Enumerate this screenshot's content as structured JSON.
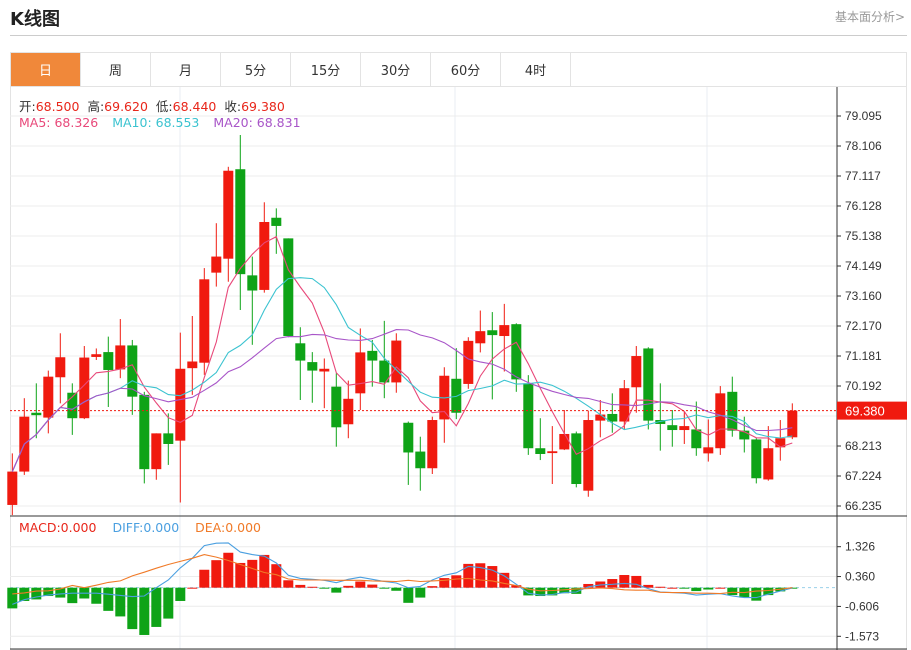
{
  "header": {
    "title": "K线图",
    "link": "基本面分析>"
  },
  "tabs": [
    {
      "label": "日",
      "active": true
    },
    {
      "label": "周"
    },
    {
      "label": "月"
    },
    {
      "label": "5分"
    },
    {
      "label": "15分"
    },
    {
      "label": "30分"
    },
    {
      "label": "60分"
    },
    {
      "label": "4时"
    }
  ],
  "legend": {
    "open_label": "开:",
    "open": "68.500",
    "high_label": "高:",
    "high": "69.620",
    "low_label": "低:",
    "low": "68.440",
    "close_label": "收:",
    "close": "69.380",
    "ma5": "MA5: 68.326",
    "ma10": "MA10: 68.553",
    "ma20": "MA20: 68.831"
  },
  "macd_legend": {
    "macd": "MACD:0.000",
    "diff": "DIFF:0.000",
    "dea": "DEA:0.000"
  },
  "colors": {
    "up": "#f01a0f",
    "down": "#0ea317",
    "accent": "#f0883a",
    "ma5": "#e8497a",
    "ma10": "#3bc3d0",
    "ma20": "#a855c8",
    "diff": "#4a9fe0",
    "dea": "#f07a28"
  },
  "chart_data": [
    {
      "type": "candlestick",
      "yticks": [
        "79.095",
        "78.106",
        "77.117",
        "76.128",
        "75.138",
        "74.149",
        "73.160",
        "72.170",
        "71.181",
        "70.192",
        "68.213",
        "67.224",
        "66.235"
      ],
      "ylim": [
        66.235,
        79.095
      ],
      "last_price": "69.380",
      "ma_periods": [
        5,
        10,
        20
      ],
      "ohlc": [
        [
          66.27,
          67.97,
          65.9,
          67.37
        ],
        [
          67.37,
          69.79,
          67.26,
          69.18
        ],
        [
          69.31,
          70.28,
          68.47,
          69.23
        ],
        [
          69.15,
          70.7,
          68.63,
          70.5
        ],
        [
          70.48,
          71.93,
          69.62,
          71.14
        ],
        [
          69.97,
          70.28,
          68.58,
          69.13
        ],
        [
          69.13,
          71.51,
          69.1,
          71.13
        ],
        [
          71.15,
          71.43,
          71.05,
          71.24
        ],
        [
          71.31,
          71.82,
          69.5,
          70.72
        ],
        [
          70.74,
          72.4,
          70.45,
          71.53
        ],
        [
          71.53,
          71.71,
          69.24,
          69.84
        ],
        [
          69.9,
          70.0,
          66.98,
          67.45
        ],
        [
          67.45,
          68.63,
          67.1,
          68.63
        ],
        [
          68.63,
          69.29,
          67.59,
          68.28
        ],
        [
          68.39,
          71.95,
          66.35,
          70.76
        ],
        [
          70.78,
          72.5,
          69.9,
          71.0
        ],
        [
          70.96,
          74.08,
          70.56,
          73.71
        ],
        [
          73.93,
          75.56,
          73.47,
          74.46
        ],
        [
          74.39,
          77.42,
          73.63,
          77.29
        ],
        [
          77.34,
          78.47,
          72.7,
          73.88
        ],
        [
          73.84,
          74.46,
          71.55,
          73.34
        ],
        [
          73.36,
          76.25,
          73.27,
          75.6
        ],
        [
          75.74,
          76.05,
          74.55,
          75.47
        ],
        [
          75.06,
          75.06,
          71.8,
          71.84
        ],
        [
          71.6,
          72.13,
          69.73,
          71.03
        ],
        [
          70.98,
          71.31,
          69.64,
          70.7
        ],
        [
          70.67,
          71.1,
          69.46,
          70.76
        ],
        [
          70.17,
          70.61,
          68.19,
          68.83
        ],
        [
          68.93,
          70.37,
          68.47,
          69.77
        ],
        [
          69.95,
          72.09,
          69.4,
          71.3
        ],
        [
          71.35,
          71.71,
          70.17,
          71.03
        ],
        [
          71.03,
          72.34,
          69.79,
          70.31
        ],
        [
          70.31,
          71.93,
          69.97,
          71.69
        ],
        [
          68.98,
          69.02,
          66.93,
          68.0
        ],
        [
          68.03,
          68.52,
          66.74,
          67.48
        ],
        [
          67.48,
          69.18,
          67.29,
          69.07
        ],
        [
          69.09,
          70.81,
          68.32,
          70.53
        ],
        [
          70.43,
          71.44,
          69.1,
          69.31
        ],
        [
          70.26,
          71.8,
          70.1,
          71.68
        ],
        [
          71.6,
          72.68,
          71.3,
          72.0
        ],
        [
          72.03,
          72.63,
          69.75,
          71.87
        ],
        [
          71.84,
          72.9,
          70.67,
          72.2
        ],
        [
          72.23,
          72.26,
          70.0,
          70.41
        ],
        [
          70.28,
          70.55,
          67.92,
          68.14
        ],
        [
          68.14,
          69.13,
          67.75,
          67.95
        ],
        [
          67.98,
          68.87,
          66.96,
          68.04
        ],
        [
          68.1,
          69.4,
          68.08,
          68.61
        ],
        [
          68.63,
          68.69,
          66.85,
          66.96
        ],
        [
          66.74,
          69.38,
          66.54,
          69.07
        ],
        [
          69.05,
          69.73,
          68.5,
          69.25
        ],
        [
          69.27,
          69.95,
          68.65,
          69.02
        ],
        [
          69.02,
          70.39,
          68.74,
          70.12
        ],
        [
          70.15,
          71.51,
          69.31,
          71.18
        ],
        [
          71.43,
          71.47,
          68.76,
          69.05
        ],
        [
          69.07,
          70.28,
          68.06,
          68.94
        ],
        [
          68.9,
          69.4,
          68.19,
          68.74
        ],
        [
          68.74,
          69.35,
          68.28,
          68.87
        ],
        [
          68.76,
          69.68,
          67.89,
          68.14
        ],
        [
          67.97,
          69.09,
          67.7,
          68.17
        ],
        [
          68.14,
          70.19,
          67.92,
          69.95
        ],
        [
          70.0,
          70.5,
          68.52,
          68.72
        ],
        [
          68.72,
          69.18,
          68.0,
          68.43
        ],
        [
          68.43,
          68.47,
          66.98,
          67.15
        ],
        [
          67.11,
          68.87,
          67.07,
          68.14
        ],
        [
          68.17,
          69.07,
          67.73,
          68.47
        ],
        [
          68.5,
          69.62,
          68.44,
          69.38
        ]
      ]
    },
    {
      "type": "bar+line",
      "yticks": [
        "1.326",
        "0.360",
        "-0.606",
        "-1.573"
      ],
      "ylim": [
        -1.573,
        1.326
      ],
      "macd": [
        -0.67,
        -0.43,
        -0.38,
        -0.27,
        -0.32,
        -0.5,
        -0.35,
        -0.52,
        -0.75,
        -0.93,
        -1.34,
        -1.53,
        -1.27,
        -1.0,
        -0.43,
        0,
        0.58,
        0.89,
        1.13,
        0.8,
        0.9,
        1.06,
        0.76,
        0.24,
        0.09,
        0.03,
        -0.02,
        -0.16,
        0.06,
        0.2,
        0.1,
        -0.01,
        -0.1,
        -0.49,
        -0.32,
        0.05,
        0.31,
        0.4,
        0.77,
        0.79,
        0.7,
        0.48,
        0.08,
        -0.25,
        -0.27,
        -0.25,
        -0.18,
        -0.2,
        0.12,
        0.2,
        0.28,
        0.41,
        0.38,
        0.09,
        0.03,
        0,
        -0.03,
        -0.11,
        -0.06,
        0,
        -0.24,
        -0.32,
        -0.42,
        -0.24,
        -0.12,
        -0.01
      ],
      "diff": [
        -0.54,
        -0.39,
        -0.3,
        -0.24,
        -0.2,
        -0.18,
        -0.18,
        -0.18,
        -0.21,
        -0.25,
        -0.29,
        -0.27,
        0,
        0.25,
        0.64,
        0.95,
        1.36,
        1.44,
        1.45,
        1.15,
        1.07,
        1.02,
        0.8,
        0.4,
        0.3,
        0.27,
        0.24,
        0.16,
        0.27,
        0.34,
        0.27,
        0.2,
        0.15,
        0,
        0.04,
        0.25,
        0.4,
        0.48,
        0.69,
        0.65,
        0.57,
        0.38,
        0.11,
        -0.18,
        -0.24,
        -0.22,
        -0.16,
        -0.14,
        0.03,
        0.09,
        0.11,
        0.14,
        0.11,
        -0.03,
        -0.14,
        -0.16,
        -0.18,
        -0.24,
        -0.21,
        -0.19,
        -0.27,
        -0.32,
        -0.32,
        -0.21,
        -0.11,
        -0.01
      ],
      "dea": [
        -0.2,
        -0.17,
        -0.11,
        -0.1,
        -0.04,
        0.07,
        0,
        0.08,
        0.17,
        0.22,
        0.38,
        0.5,
        0.63,
        0.75,
        0.85,
        0.95,
        1.07,
        0.99,
        0.88,
        0.75,
        0.62,
        0.49,
        0.42,
        0.28,
        0.25,
        0.25,
        0.25,
        0.24,
        0.24,
        0.24,
        0.22,
        0.21,
        0.2,
        0.24,
        0.2,
        0.22,
        0.24,
        0.28,
        0.3,
        0.25,
        0.22,
        0.14,
        0.07,
        -0.05,
        -0.1,
        -0.09,
        -0.07,
        -0.04,
        -0.03,
        -0.01,
        -0.03,
        -0.07,
        -0.08,
        -0.08,
        -0.15,
        -0.16,
        -0.16,
        -0.18,
        -0.18,
        -0.19,
        -0.15,
        -0.16,
        -0.11,
        -0.09,
        -0.05,
        0
      ]
    }
  ]
}
